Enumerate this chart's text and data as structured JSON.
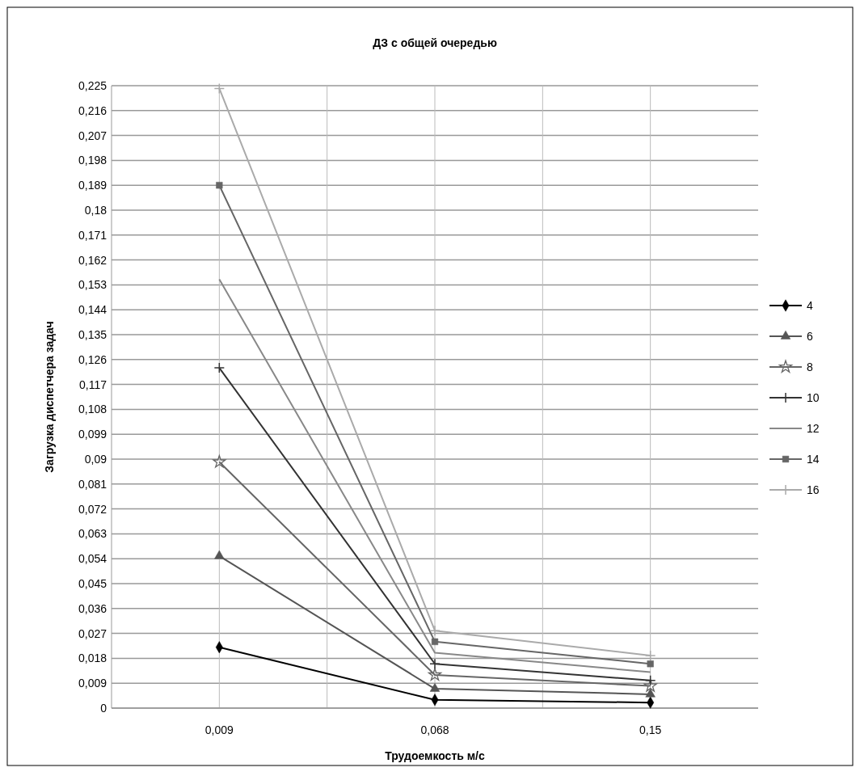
{
  "chart_data": {
    "type": "line",
    "title": "ДЗ с общей очередью",
    "xlabel": "Трудоемкость м/с",
    "ylabel": "Загрузка диспетчера задач",
    "categories": [
      "0,009",
      "0,068",
      "0,15"
    ],
    "series": [
      {
        "name": "4",
        "color": "#000000",
        "marker": "diamond",
        "values": [
          0.022,
          0.003,
          0.002
        ]
      },
      {
        "name": "6",
        "color": "#555555",
        "marker": "triangle",
        "values": [
          0.055,
          0.007,
          0.005
        ]
      },
      {
        "name": "8",
        "color": "#666666",
        "marker": "star",
        "values": [
          0.089,
          0.012,
          0.008
        ]
      },
      {
        "name": "10",
        "color": "#333333",
        "marker": "cross",
        "values": [
          0.123,
          0.016,
          0.01
        ]
      },
      {
        "name": "12",
        "color": "#888888",
        "marker": "none",
        "values": [
          0.155,
          0.02,
          0.013
        ]
      },
      {
        "name": "14",
        "color": "#666666",
        "marker": "square",
        "values": [
          0.189,
          0.024,
          0.016
        ]
      },
      {
        "name": "16",
        "color": "#aaaaaa",
        "marker": "cross",
        "values": [
          0.224,
          0.028,
          0.019
        ]
      }
    ],
    "ylim": [
      0,
      0.225
    ],
    "yticks": [
      {
        "value": 0,
        "label": "0"
      },
      {
        "value": 0.009,
        "label": "0,009"
      },
      {
        "value": 0.018,
        "label": "0,018"
      },
      {
        "value": 0.027,
        "label": "0,027"
      },
      {
        "value": 0.036,
        "label": "0,036"
      },
      {
        "value": 0.045,
        "label": "0,045"
      },
      {
        "value": 0.054,
        "label": "0,054"
      },
      {
        "value": 0.063,
        "label": "0,063"
      },
      {
        "value": 0.072,
        "label": "0,072"
      },
      {
        "value": 0.081,
        "label": "0,081"
      },
      {
        "value": 0.09,
        "label": "0,09"
      },
      {
        "value": 0.099,
        "label": "0,099"
      },
      {
        "value": 0.108,
        "label": "0,108"
      },
      {
        "value": 0.117,
        "label": "0,117"
      },
      {
        "value": 0.126,
        "label": "0,126"
      },
      {
        "value": 0.135,
        "label": "0,135"
      },
      {
        "value": 0.144,
        "label": "0,144"
      },
      {
        "value": 0.153,
        "label": "0,153"
      },
      {
        "value": 0.162,
        "label": "0,162"
      },
      {
        "value": 0.171,
        "label": "0,171"
      },
      {
        "value": 0.18,
        "label": "0,18"
      },
      {
        "value": 0.189,
        "label": "0,189"
      },
      {
        "value": 0.198,
        "label": "0,198"
      },
      {
        "value": 0.207,
        "label": "0,207"
      },
      {
        "value": 0.216,
        "label": "0,216"
      },
      {
        "value": 0.225,
        "label": "0,225"
      }
    ],
    "grid": true,
    "legend": "right",
    "line_style": "solid"
  }
}
